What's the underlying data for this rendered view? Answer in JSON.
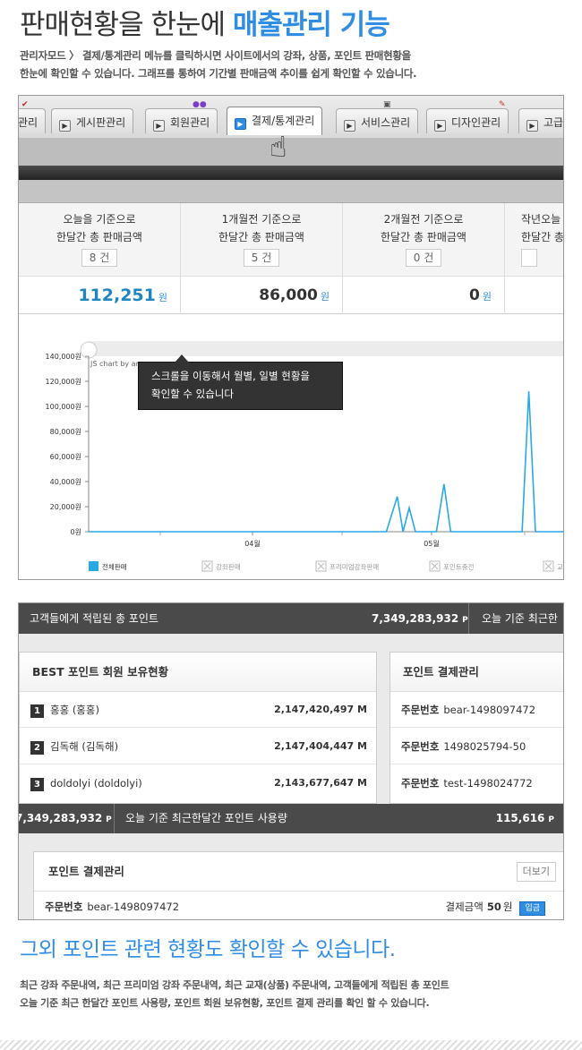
{
  "hero": {
    "title_plain": "판매현황을 한눈에",
    "title_accent": "매출관리 기능",
    "desc_line1": "관리자모드 〉 결제/통계관리 메뉴를 클릭하시면 사이트에서의 강좌, 상품, 포인트 판매현황을",
    "desc_line2": "한눈에 확인할 수 있습니다. 그래프를 통하여 기간별 판매금액 추이를 쉽게 확인할 수 있습니다."
  },
  "tabs": [
    {
      "label": "관리",
      "icon": "play-icon"
    },
    {
      "label": "게시판관리",
      "icon": "play-icon"
    },
    {
      "label": "회원관리",
      "icon": "play-icon"
    },
    {
      "label": "결제/통계관리",
      "icon": "play-icon",
      "active": true
    },
    {
      "label": "서비스관리",
      "icon": "play-icon"
    },
    {
      "label": "디자인관리",
      "icon": "play-icon"
    },
    {
      "label": "고급",
      "icon": "play-icon"
    }
  ],
  "stats": [
    {
      "line1": "오늘을 기준으로",
      "line2": "한달간 총 판매금액",
      "count": "8 건",
      "value": "112,251",
      "unit": "원"
    },
    {
      "line1": "1개월전 기준으로",
      "line2": "한달간 총 판매금액",
      "count": "5 건",
      "value": "86,000",
      "unit": "원"
    },
    {
      "line1": "2개월전 기준으로",
      "line2": "한달간 총 판매금액",
      "count": "0 건",
      "value": "0",
      "unit": "원"
    },
    {
      "line1": "작년오늘",
      "line2": "한달간 총",
      "count": "",
      "value": "",
      "unit": ""
    }
  ],
  "tooltip": {
    "line1": "스크롤을 이동해서 월별, 일별  현황을",
    "line2": "확인할 수 있습니다"
  },
  "chart_data": {
    "type": "line",
    "watermark": "JS chart by am",
    "y_ticks": [
      "140,000원",
      "120,000원",
      "100,000원",
      "80,000원",
      "60,000원",
      "40,000원",
      "20,000원",
      "0원"
    ],
    "ylim": [
      0,
      140000
    ],
    "x_ticks": [
      "04월",
      "05월"
    ],
    "xlim": [
      0,
      100
    ],
    "series": [
      {
        "name": "전체판매",
        "color": "#29a8e6",
        "points": [
          [
            0,
            0
          ],
          [
            62.5,
            0
          ],
          [
            64.8,
            28000
          ],
          [
            66.0,
            0
          ],
          [
            67.3,
            19000
          ],
          [
            68.6,
            0
          ],
          [
            73.0,
            0
          ],
          [
            74.6,
            38000
          ],
          [
            76.0,
            0
          ],
          [
            91.0,
            0
          ],
          [
            92.4,
            112000
          ],
          [
            93.8,
            0
          ],
          [
            100,
            0
          ]
        ]
      }
    ],
    "legend": [
      {
        "label": "전체판매",
        "color": "#29a8e6",
        "active": true
      },
      {
        "label": "강좌판매",
        "active": false
      },
      {
        "label": "프리미엄강좌판매",
        "active": false
      },
      {
        "label": "포인트충전",
        "active": false
      },
      {
        "label": "교",
        "active": false
      }
    ]
  },
  "points_panel": {
    "total_label": "고객들에게 적립된 총 포인트",
    "total_value": "7,349,283,932",
    "unit": "P",
    "right_label": "오늘 기준 최근한",
    "best": {
      "title": "BEST 포인트 회원 보유현황",
      "rows": [
        {
          "rank": "1",
          "name": "홍홍 (홍홍)",
          "amount": "2,147,420,497 M"
        },
        {
          "rank": "2",
          "name": "김독해 (김독해)",
          "amount": "2,147,404,447 M"
        },
        {
          "rank": "3",
          "name": "doldolyi (doldolyi)",
          "amount": "2,143,677,647 M"
        }
      ]
    },
    "payment": {
      "title": "포인트 결제관리",
      "label": "주문번호",
      "orders": [
        "bear-1498097472",
        "1498025794-50",
        "test-1498024772"
      ]
    },
    "mid": {
      "left_value": "7,349,283,932",
      "label": "오늘 기준 최근한달간 포인트 사용량",
      "right_value": "115,616"
    },
    "manage": {
      "title": "포인트 결제관리",
      "more": "더보기",
      "order_label": "주문번호",
      "order_no": "bear-1498097472",
      "pay_label": "결제금액",
      "pay_amount": "50",
      "pay_unit": "원",
      "status": "입금"
    }
  },
  "sub": {
    "title": "그외 포인트 관련 현황도 확인할 수 있습니다.",
    "desc_line1": "최근 강좌 주문내역, 최근 프리미엄 강좌 주문내역, 최근 교재(상품) 주문내역, 고객들에게 적립된 총 포인트",
    "desc_line2": "오늘 기준 최근 한달간 포인트 사용량, 포인트 회원 보유현황, 포인트 결제 관리를 확인 할 수 있습니다."
  }
}
